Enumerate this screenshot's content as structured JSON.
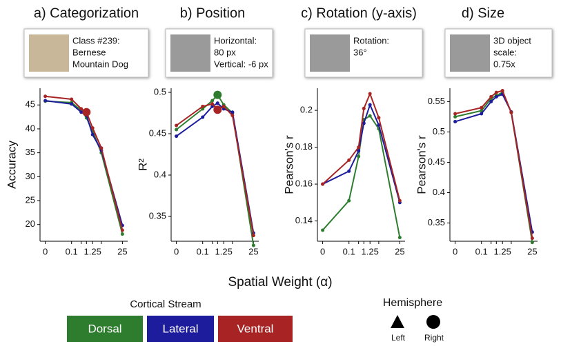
{
  "chart_data": [
    {
      "type": "line",
      "title": "a) Categorization",
      "info": [
        "Class #239:",
        "Bernese",
        "Mountain Dog"
      ],
      "ylabel": "Accuracy",
      "categories": [
        "0",
        "0.1",
        null,
        null,
        "1.25",
        null,
        "25"
      ],
      "series": [
        {
          "name": "Dorsal",
          "color": "#2e7d2e",
          "values": [
            45.8,
            45.5,
            43.9,
            42.3,
            39.5,
            35.0,
            18.0
          ]
        },
        {
          "name": "Lateral",
          "color": "#1c1c9c",
          "values": [
            45.9,
            45.2,
            43.5,
            42.8,
            38.8,
            35.5,
            19.8
          ]
        },
        {
          "name": "Ventral",
          "color": "#a82424",
          "values": [
            46.8,
            46.2,
            44.2,
            43.5,
            40.2,
            36.0,
            18.8
          ],
          "highlight": 3
        }
      ],
      "ylim": [
        16.5,
        48.5
      ],
      "yticks": [
        20,
        25,
        30,
        35,
        40,
        45
      ]
    },
    {
      "type": "line",
      "title": "b) Position",
      "info": [
        "Horizontal:",
        "80 px",
        "Vertical: -6 px"
      ],
      "ylabel": "R²",
      "categories": [
        "0",
        "0.1",
        null,
        null,
        "1.25",
        null,
        "25"
      ],
      "series": [
        {
          "name": "Dorsal",
          "color": "#2e7d2e",
          "values": [
            0.455,
            0.48,
            0.49,
            0.497,
            0.485,
            0.475,
            0.315
          ],
          "highlight": 3
        },
        {
          "name": "Lateral",
          "color": "#1c1c9c",
          "values": [
            0.447,
            0.47,
            0.483,
            0.487,
            0.48,
            0.476,
            0.33
          ]
        },
        {
          "name": "Ventral",
          "color": "#a82424",
          "values": [
            0.46,
            0.483,
            0.486,
            0.479,
            0.483,
            0.472,
            0.327
          ],
          "highlight": 3
        }
      ],
      "ylim": [
        0.32,
        0.505
      ],
      "yticks": [
        0.35,
        0.4,
        0.45,
        0.5
      ]
    },
    {
      "type": "line",
      "title": "c) Rotation (y-axis)",
      "info": [
        "Rotation:",
        "36°"
      ],
      "ylabel": "Pearson's r",
      "categories": [
        "0",
        "0.1",
        null,
        null,
        "1.25",
        null,
        "25"
      ],
      "series": [
        {
          "name": "Dorsal",
          "color": "#2e7d2e",
          "values": [
            0.135,
            0.151,
            0.175,
            0.195,
            0.197,
            0.19,
            0.131
          ]
        },
        {
          "name": "Lateral",
          "color": "#1c1c9c",
          "values": [
            0.16,
            0.167,
            0.178,
            0.193,
            0.203,
            0.192,
            0.15
          ]
        },
        {
          "name": "Ventral",
          "color": "#a82424",
          "values": [
            0.16,
            0.173,
            0.18,
            0.201,
            0.209,
            0.196,
            0.151
          ]
        }
      ],
      "ylim": [
        0.129,
        0.212
      ],
      "yticks": [
        0.14,
        0.16,
        0.18,
        0.2
      ]
    },
    {
      "type": "line",
      "title": "d) Size",
      "info": [
        "3D object",
        "scale:",
        "0.75x"
      ],
      "ylabel": "Pearson's r",
      "categories": [
        "0",
        "0.1",
        null,
        null,
        "1.25",
        null,
        "25"
      ],
      "series": [
        {
          "name": "Dorsal",
          "color": "#2e7d2e",
          "values": [
            0.525,
            0.535,
            0.555,
            0.56,
            0.565,
            0.532,
            0.318
          ]
        },
        {
          "name": "Lateral",
          "color": "#1c1c9c",
          "values": [
            0.517,
            0.53,
            0.55,
            0.558,
            0.562,
            0.533,
            0.335
          ]
        },
        {
          "name": "Ventral",
          "color": "#a82424",
          "values": [
            0.53,
            0.54,
            0.558,
            0.565,
            0.568,
            0.532,
            0.325
          ]
        }
      ],
      "ylim": [
        0.32,
        0.572
      ],
      "yticks": [
        0.35,
        0.4,
        0.45,
        0.5,
        0.55
      ]
    }
  ],
  "xlabel": "Spatial Weight (α)",
  "stream_legend_title": "Cortical Stream",
  "hemisphere": {
    "title": "Hemisphere",
    "left": "Left",
    "right": "Right"
  }
}
